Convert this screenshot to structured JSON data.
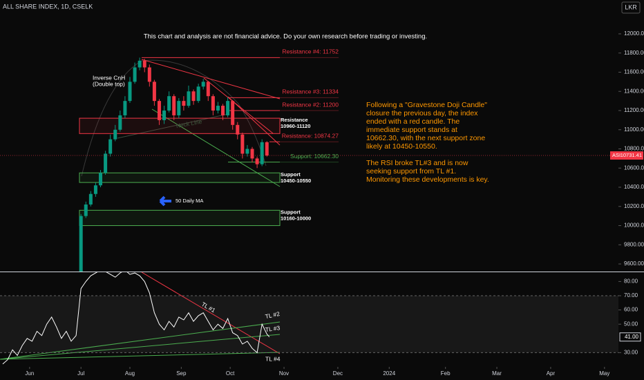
{
  "header": {
    "symbol": "ALL SHARE INDEX, 1D, CSELK",
    "currency": "LKR",
    "disclaimer": "This chart and analysis are not financial advice. Do your own research before trading or investing."
  },
  "commentary": [
    "Following a \"Gravestone Doji Candle\" closure the previous day, the index ended with a red candle. The immediate support stands at 10662.30, with the next support zone likely at 10450-10550.",
    "The RSI broke TL#3 and is now seeking support from TL #1. Monitoring these developments is key."
  ],
  "chart_data": [
    {
      "type": "candlestick",
      "x": [
        21,
        23,
        25,
        27,
        29,
        31,
        33,
        35,
        37,
        39,
        41,
        43,
        45,
        47,
        49,
        51,
        53,
        55,
        57,
        59,
        61,
        63,
        65,
        67,
        69,
        71,
        73,
        75,
        77,
        79,
        81,
        83,
        85,
        87,
        89,
        91,
        93,
        95,
        97
      ],
      "open": [
        9500,
        10100,
        10220,
        10330,
        10420,
        10550,
        10750,
        10900,
        11000,
        11150,
        11300,
        11500,
        11650,
        11720,
        11650,
        11500,
        11300,
        11100,
        11200,
        11350,
        11150,
        11300,
        11250,
        11400,
        11300,
        11450,
        11500,
        11350,
        11200,
        11250,
        11150,
        11300,
        11050,
        10950,
        10750,
        10800,
        10700,
        10640,
        10870
      ],
      "high": [
        10120,
        10250,
        10360,
        10450,
        10580,
        10780,
        10950,
        11050,
        11200,
        11350,
        11550,
        11700,
        11752,
        11740,
        11680,
        11520,
        11320,
        11250,
        11400,
        11370,
        11330,
        11350,
        11460,
        11420,
        11480,
        11530,
        11510,
        11370,
        11290,
        11270,
        11340,
        11310,
        11080,
        10970,
        10840,
        10820,
        10720,
        10900,
        10880
      ],
      "low": [
        9450,
        10080,
        10200,
        10300,
        10400,
        10530,
        10720,
        10880,
        10980,
        11120,
        11280,
        11480,
        11620,
        11600,
        11450,
        11250,
        11050,
        11060,
        11180,
        11100,
        11120,
        11200,
        11230,
        11260,
        11280,
        11420,
        11300,
        11150,
        11170,
        11100,
        11130,
        11000,
        10900,
        10700,
        10720,
        10660,
        10600,
        10620,
        10720
      ],
      "close": [
        10100,
        10220,
        10330,
        10420,
        10550,
        10750,
        10900,
        11000,
        11150,
        11300,
        11500,
        11650,
        11720,
        11650,
        11500,
        11300,
        11100,
        11200,
        11350,
        11150,
        11300,
        11250,
        11400,
        11300,
        11450,
        11500,
        11350,
        11200,
        11250,
        11150,
        11300,
        11050,
        10950,
        10750,
        10800,
        10700,
        10640,
        10870,
        10731.41
      ],
      "up_color": "#089981",
      "down_color": "#f23645",
      "symbol_tag": "ASI",
      "xlim": [
        -12.1,
        240.7
      ],
      "ylim": [
        9521,
        12353
      ],
      "yticks": [
        {
          "value": 12000,
          "label": "12000.00"
        },
        {
          "value": 11800,
          "label": "11800.00"
        },
        {
          "value": 11600,
          "label": "11600.00"
        },
        {
          "value": 11400,
          "label": "11400.00"
        },
        {
          "value": 11200,
          "label": "11200.00"
        },
        {
          "value": 11000,
          "label": "11000.00"
        },
        {
          "value": 10800,
          "label": "10800.00"
        },
        {
          "value": 10600,
          "label": "10600.00"
        },
        {
          "value": 10400,
          "label": "10400.00"
        },
        {
          "value": 10200,
          "label": "10200.00"
        },
        {
          "value": 10000,
          "label": "10000.00"
        },
        {
          "value": 9800,
          "label": "9800.00"
        },
        {
          "value": 9600,
          "label": "9600.00"
        }
      ],
      "levels": [
        {
          "value": 11752,
          "label": "Resistance #4: 11752",
          "color": "#f23645"
        },
        {
          "value": 11334,
          "label": "Resistance #3: 11334",
          "color": "#f23645"
        },
        {
          "value": 11200,
          "label": "Resistance #2: 11200",
          "color": "#f23645"
        },
        {
          "value": 10874.27,
          "label": "Resistance: 10874.27",
          "color": "#f23645"
        },
        {
          "value": 10662.3,
          "label": "Support: 10662.30",
          "color": "#4caf50"
        }
      ],
      "zones": [
        {
          "title": "Resistance",
          "range_label": "10960-11120",
          "low": 10960,
          "high": 11120,
          "color": "#f23645"
        },
        {
          "title": "Support",
          "range_label": "10450-10550",
          "low": 10450,
          "high": 10550,
          "color": "#4caf50"
        },
        {
          "title": "Support",
          "range_label": "10160-10000",
          "low": 10000,
          "high": 10160,
          "color": "#4caf50"
        }
      ],
      "annotations": [
        "Inverse CnH",
        "(Double top)",
        "Neck Line",
        "50 Daily MA"
      ]
    },
    {
      "type": "line",
      "x": [
        -11,
        -9,
        -7,
        -5,
        -3,
        -1,
        1,
        3,
        5,
        7,
        9,
        11,
        13,
        15,
        17,
        19,
        21,
        23,
        25,
        27,
        29,
        31,
        33,
        35,
        37,
        39,
        41,
        43,
        45,
        47,
        49,
        51,
        53,
        55,
        57,
        59,
        61,
        63,
        65,
        67,
        69,
        71,
        73,
        75,
        77,
        79,
        81,
        83,
        85,
        87,
        89,
        91,
        93,
        95,
        97,
        98
      ],
      "values": [
        22,
        25,
        32,
        28,
        35,
        40,
        38,
        45,
        42,
        50,
        55,
        48,
        40,
        45,
        38,
        42,
        75,
        80,
        84,
        86,
        88,
        87,
        85,
        83,
        86,
        88,
        85,
        86,
        84,
        80,
        72,
        58,
        50,
        46,
        52,
        48,
        55,
        53,
        58,
        52,
        56,
        58,
        52,
        46,
        50,
        47,
        54,
        44,
        42,
        36,
        38,
        33,
        30,
        50,
        43,
        41
      ],
      "value_labels": [
        null,
        null,
        null,
        null,
        null,
        null,
        null,
        null,
        null,
        null,
        null,
        null,
        null,
        null,
        null,
        null,
        null,
        null,
        null,
        null,
        null,
        null,
        null,
        null,
        null,
        null,
        null,
        null,
        null,
        null,
        null,
        null,
        null,
        null,
        null,
        null,
        null,
        null,
        null,
        null,
        null,
        null,
        null,
        null,
        null,
        null,
        null,
        null,
        null,
        null,
        null,
        null,
        null,
        null,
        null,
        "41.00"
      ],
      "color": "#ffffff",
      "bands": [
        30,
        70
      ],
      "xlim": [
        -12.1,
        240.7
      ],
      "ylim": [
        20,
        87
      ],
      "yticks": [
        {
          "value": 80,
          "label": "80.00"
        },
        {
          "value": 70,
          "label": "70.00"
        },
        {
          "value": 60,
          "label": "60.00"
        },
        {
          "value": 50,
          "label": "50.00"
        },
        {
          "value": 30,
          "label": "30.00"
        }
      ],
      "xticks": [
        {
          "value": 0,
          "label": "Jun"
        },
        {
          "value": 21,
          "label": "Jul"
        },
        {
          "value": 41,
          "label": "Aug"
        },
        {
          "value": 62,
          "label": "Sep"
        },
        {
          "value": 82,
          "label": "Oct"
        },
        {
          "value": 104,
          "label": "Nov"
        },
        {
          "value": 126,
          "label": "Dec"
        },
        {
          "value": 147,
          "label": "2024"
        },
        {
          "value": 170,
          "label": "Feb"
        },
        {
          "value": 191,
          "label": "Mar"
        },
        {
          "value": 213,
          "label": "Apr"
        },
        {
          "value": 235,
          "label": "May"
        }
      ],
      "trendline_labels": [
        "TL #1",
        "TL #2",
        "TL #3",
        "TL #4"
      ]
    }
  ]
}
